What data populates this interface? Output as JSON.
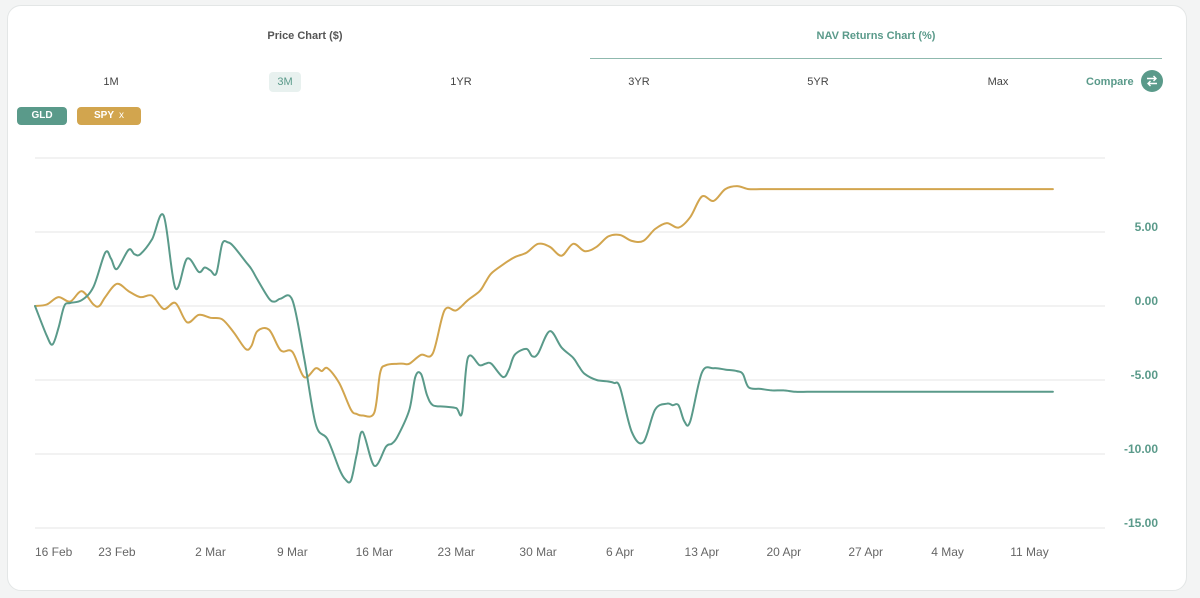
{
  "tabs": [
    {
      "label": "Price Chart ($)",
      "active": false
    },
    {
      "label": "NAV Returns Chart (%)",
      "active": true
    }
  ],
  "ranges": [
    {
      "label": "1M",
      "active": false
    },
    {
      "label": "3M",
      "active": true
    },
    {
      "label": "1YR",
      "active": false
    },
    {
      "label": "3YR",
      "active": false
    },
    {
      "label": "5YR",
      "active": false
    },
    {
      "label": "Max",
      "active": false
    }
  ],
  "compare_label": "Compare",
  "chips": {
    "gld": "GLD",
    "spy": "SPY",
    "spy_remove": "x"
  },
  "colors": {
    "gld": "#5a9a8a",
    "spy": "#d2a54e",
    "grid": "#e6e6e6",
    "axis_label": "#5a9a8a"
  },
  "chart_data": {
    "type": "line",
    "ylim": [
      -15,
      10
    ],
    "yticks": [
      5,
      0,
      -5,
      -10,
      -15
    ],
    "ytick_labels": [
      "5.00",
      "0.00",
      "-5.00",
      "-10.00",
      "-15.00"
    ],
    "xlim": [
      0,
      90
    ],
    "xticks": [
      0,
      7,
      15,
      22,
      29,
      36,
      43,
      50,
      57,
      64,
      71,
      78,
      85
    ],
    "xtick_labels": [
      "16 Feb",
      "23 Feb",
      "2 Mar",
      "9 Mar",
      "16 Mar",
      "23 Mar",
      "30 Mar",
      "6 Apr",
      "13 Apr",
      "20 Apr",
      "27 Apr",
      "4 May",
      "11 May"
    ],
    "series": [
      {
        "name": "GLD",
        "x": [
          0,
          1,
          1.5,
          2,
          2.5,
          3,
          4,
          5,
          6,
          6.5,
          7,
          8,
          8.5,
          9,
          10,
          11,
          12,
          13,
          14,
          14.5,
          15,
          15.5,
          16,
          16.5,
          17,
          18,
          18.5,
          19,
          20,
          20.5,
          21,
          22,
          23,
          24,
          25,
          26,
          26.5,
          27,
          27.5,
          28,
          29,
          30,
          30.5,
          31,
          32,
          32.5,
          33,
          33.5,
          34,
          35,
          36,
          36.5,
          37,
          38,
          38.5,
          39,
          40,
          40.5,
          41,
          42,
          42.5,
          43,
          44,
          45,
          46,
          46.5,
          47,
          48,
          49,
          49.5,
          50,
          51,
          52,
          53,
          54,
          54.5,
          55,
          55.5,
          56,
          57,
          58,
          59,
          60,
          60.5,
          61,
          62,
          63,
          64,
          65,
          66,
          67,
          68,
          69,
          70,
          71,
          72,
          73,
          74,
          75,
          76,
          76.5,
          77,
          78,
          79,
          80,
          80.5,
          81,
          82,
          83,
          84,
          85,
          86,
          87
        ],
        "y": [
          0,
          -2,
          -2.6,
          -1.5,
          0,
          0.2,
          0.4,
          1.3,
          3.6,
          3.2,
          2.5,
          3.8,
          3.5,
          3.5,
          4.5,
          6.1,
          1.2,
          3.2,
          2.3,
          2.6,
          2.4,
          2.2,
          4.2,
          4.3,
          4,
          3,
          2.5,
          1.8,
          0.5,
          0.3,
          0.5,
          0.4,
          -3.5,
          -8.0,
          -9.0,
          -11.0,
          -11.7,
          -11.8,
          -10.0,
          -8.5,
          -10.8,
          -9.5,
          -9.3,
          -8.8,
          -7.0,
          -4.8,
          -4.6,
          -6.0,
          -6.7,
          -6.8,
          -6.9,
          -7.2,
          -3.5,
          -4.0,
          -3.9,
          -3.9,
          -4.8,
          -4.3,
          -3.3,
          -2.9,
          -3.4,
          -3.2,
          -1.7,
          -2.8,
          -3.5,
          -4.1,
          -4.6,
          -5.0,
          -5.1,
          -5.2,
          -5.5,
          -8.5,
          -9.2,
          -7.0,
          -6.6,
          -6.7,
          -6.7,
          -7.8,
          -7.8,
          -4.5,
          -4.2,
          -4.3,
          -4.4,
          -4.6,
          -5.5,
          -5.6,
          -5.7,
          -5.7,
          -5.8,
          -5.8,
          -5.8,
          -5.8,
          -5.8,
          -5.8,
          -5.8,
          -5.8,
          -5.8,
          -5.8,
          -5.8,
          -5.8,
          -5.8,
          -5.8,
          -5.8,
          -5.8,
          -5.8,
          -5.8,
          -5.8,
          -5.8,
          -5.8,
          -5.8,
          -5.8,
          -5.8,
          -5.8
        ],
        "note_end": 87
      },
      {
        "name": "SPY",
        "x": [
          0,
          1,
          2,
          3,
          4,
          5,
          5.5,
          6,
          7,
          8,
          9,
          10,
          11,
          12,
          13,
          14,
          15,
          16,
          17,
          18,
          18.5,
          19,
          20,
          21,
          22,
          23,
          24,
          24.5,
          25,
          26,
          27,
          27.5,
          28,
          29,
          29.5,
          30,
          31,
          31.5,
          32,
          33,
          34,
          35,
          36,
          37,
          38,
          38.5,
          39,
          40,
          41,
          42,
          43,
          44,
          45,
          46,
          47,
          48,
          49,
          50,
          51,
          52,
          53,
          54,
          55,
          56,
          57,
          58,
          59,
          60,
          61,
          62,
          63,
          64,
          65,
          66,
          67,
          68,
          69,
          70,
          71,
          72,
          73,
          74,
          75,
          76,
          77,
          78,
          79,
          80,
          81,
          82,
          83,
          84,
          85,
          86,
          87
        ],
        "y": [
          0,
          0.1,
          0.6,
          0.3,
          1.0,
          0.1,
          0,
          0.6,
          1.5,
          1.0,
          0.6,
          0.7,
          -0.2,
          0.2,
          -1.1,
          -0.6,
          -0.8,
          -0.9,
          -1.8,
          -2.9,
          -2.7,
          -1.7,
          -1.6,
          -3.0,
          -3.1,
          -4.8,
          -4.2,
          -4.4,
          -4.2,
          -5.2,
          -7.0,
          -7.3,
          -7.4,
          -7.2,
          -4.5,
          -4.0,
          -3.9,
          -3.9,
          -3.9,
          -3.3,
          -3.2,
          -0.3,
          -0.3,
          0.4,
          1.0,
          1.6,
          2.2,
          2.8,
          3.3,
          3.6,
          4.2,
          4.0,
          3.4,
          4.2,
          3.7,
          4.0,
          4.7,
          4.8,
          4.4,
          4.4,
          5.2,
          5.6,
          5.3,
          6.0,
          7.4,
          7.1,
          7.9,
          8.1,
          7.9,
          7.9,
          7.9,
          7.9,
          7.9,
          7.9,
          7.9,
          7.9,
          7.9,
          7.9,
          7.9,
          7.9,
          7.9,
          7.9,
          7.9,
          7.9,
          7.9,
          7.9,
          7.9,
          7.9,
          7.9,
          7.9,
          7.9,
          7.9,
          7.9,
          7.9,
          7.9
        ]
      }
    ]
  }
}
